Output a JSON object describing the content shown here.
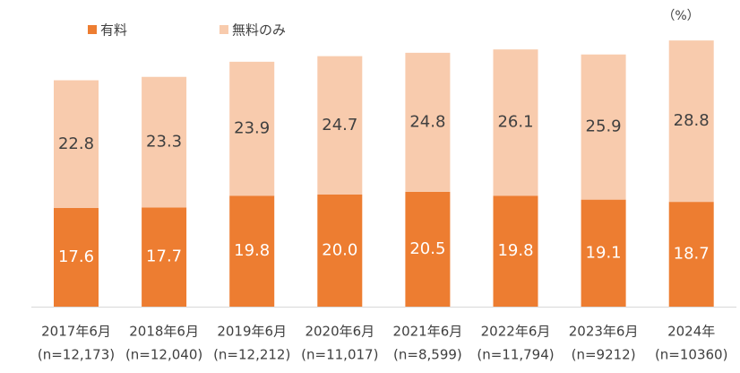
{
  "chart_data": {
    "type": "stacked_bar",
    "unit": "（%）",
    "categories": [
      "2017年6月",
      "2018年6月",
      "2019年6月",
      "2020年6月",
      "2021年6月",
      "2022年6月",
      "2023年6月",
      "2024年"
    ],
    "sample_sizes": [
      "(n=12,173)",
      "(n=12,040)",
      "(n=12,212)",
      "(n=11,017)",
      "(n=8,599)",
      "(n=11,794)",
      "(n=9212)",
      "(n=10360)"
    ],
    "series": [
      {
        "name": "有料",
        "color": "#ed7d31",
        "label_color": "#ffffff",
        "values": [
          17.6,
          17.7,
          19.8,
          20.0,
          20.5,
          19.8,
          19.1,
          18.7
        ],
        "value_labels": [
          "17.6",
          "17.7",
          "19.8",
          "20.0",
          "20.5",
          "19.8",
          "19.1",
          "18.7"
        ]
      },
      {
        "name": "無料のみ",
        "color": "#f8cbad",
        "label_color": "#404040",
        "values": [
          22.8,
          23.3,
          23.9,
          24.7,
          24.8,
          26.1,
          25.9,
          28.8
        ],
        "value_labels": [
          "22.8",
          "23.3",
          "23.9",
          "24.7",
          "24.8",
          "26.1",
          "25.9",
          "28.8"
        ]
      }
    ]
  }
}
